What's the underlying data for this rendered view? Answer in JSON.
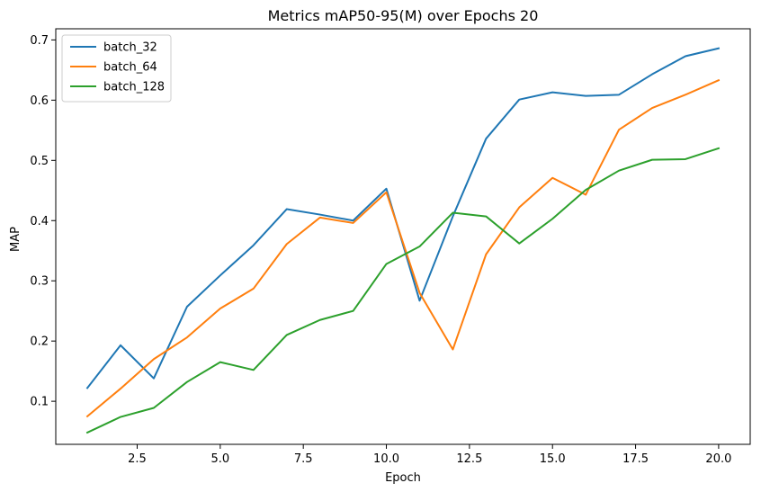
{
  "chart_data": {
    "type": "line",
    "title": "Metrics mAP50-95(M) over Epochs 20",
    "xlabel": "Epoch",
    "ylabel": "MAP",
    "xlim": [
      0.05,
      20.95
    ],
    "ylim": [
      0.0285,
      0.7185
    ],
    "xticks": [
      2.5,
      5.0,
      7.5,
      10.0,
      12.5,
      15.0,
      17.5,
      20.0
    ],
    "xtick_labels": [
      "2.5",
      "5.0",
      "7.5",
      "10.0",
      "12.5",
      "15.0",
      "17.5",
      "20.0"
    ],
    "yticks": [
      0.1,
      0.2,
      0.3,
      0.4,
      0.5,
      0.6,
      0.7
    ],
    "ytick_labels": [
      "0.1",
      "0.2",
      "0.3",
      "0.4",
      "0.5",
      "0.6",
      "0.7"
    ],
    "grid": false,
    "legend_position": "top-left",
    "x": [
      1,
      2,
      3,
      4,
      5,
      6,
      7,
      8,
      9,
      10,
      11,
      12,
      13,
      14,
      15,
      16,
      17,
      18,
      19,
      20
    ],
    "series": [
      {
        "name": "batch_32",
        "color": "#1f77b4",
        "values": [
          0.122,
          0.193,
          0.138,
          0.257,
          0.309,
          0.359,
          0.419,
          0.41,
          0.4,
          0.453,
          0.267,
          0.407,
          0.536,
          0.601,
          0.613,
          0.607,
          0.609,
          0.643,
          0.673,
          0.686
        ]
      },
      {
        "name": "batch_64",
        "color": "#ff7f0e",
        "values": [
          0.075,
          0.121,
          0.17,
          0.206,
          0.254,
          0.287,
          0.361,
          0.405,
          0.396,
          0.447,
          0.28,
          0.186,
          0.344,
          0.422,
          0.471,
          0.443,
          0.551,
          0.587,
          0.609,
          0.633
        ]
      },
      {
        "name": "batch_128",
        "color": "#2ca02c",
        "values": [
          0.048,
          0.074,
          0.089,
          0.132,
          0.165,
          0.152,
          0.21,
          0.235,
          0.25,
          0.328,
          0.357,
          0.413,
          0.407,
          0.362,
          0.403,
          0.451,
          0.483,
          0.501,
          0.502,
          0.52
        ]
      }
    ]
  }
}
